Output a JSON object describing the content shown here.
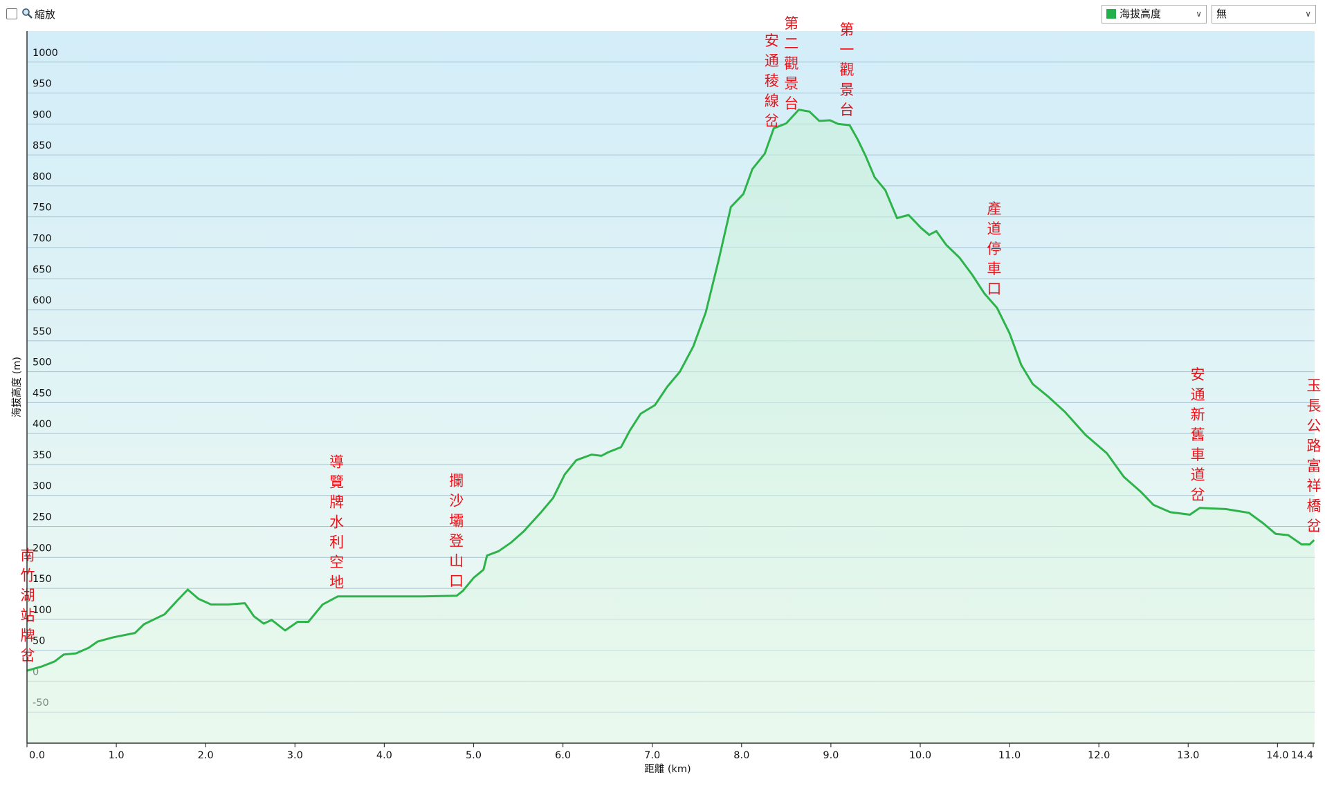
{
  "toolbar": {
    "zoom_label": "縮放",
    "series_select": "海拔高度",
    "compare_select": "無"
  },
  "chart_data": {
    "type": "area",
    "x_label": "距離 (km)",
    "y_label": "海拔高度 (m)",
    "xlim": [
      0,
      14.4
    ],
    "ylim": [
      -100,
      1050
    ],
    "xticks": [
      {
        "value": 0,
        "label": "0.0"
      },
      {
        "value": 1,
        "label": "1.0"
      },
      {
        "value": 2,
        "label": "2.0"
      },
      {
        "value": 3,
        "label": "3.0"
      },
      {
        "value": 4,
        "label": "4.0"
      },
      {
        "value": 5,
        "label": "5.0"
      },
      {
        "value": 6,
        "label": "6.0"
      },
      {
        "value": 7,
        "label": "7.0"
      },
      {
        "value": 8,
        "label": "8.0"
      },
      {
        "value": 9,
        "label": "9.0"
      },
      {
        "value": 10,
        "label": "10.0"
      },
      {
        "value": 11,
        "label": "11.0"
      },
      {
        "value": 12,
        "label": "12.0"
      },
      {
        "value": 13,
        "label": "13.0"
      },
      {
        "value": 14,
        "label": "14.0"
      },
      {
        "value": 14.4,
        "label": "14.4"
      }
    ],
    "yticks": [
      -50,
      0,
      50,
      100,
      150,
      200,
      250,
      300,
      350,
      400,
      450,
      500,
      550,
      600,
      650,
      700,
      750,
      800,
      850,
      900,
      950,
      1000
    ],
    "grid": true,
    "series": [
      {
        "name": "海拔高度",
        "color": "#2db34a",
        "x": [
          0,
          0.17,
          0.31,
          0.41,
          0.55,
          0.69,
          0.79,
          0.97,
          1.21,
          1.31,
          1.54,
          1.68,
          1.8,
          1.92,
          2.06,
          2.25,
          2.44,
          2.54,
          2.65,
          2.74,
          2.89,
          3.03,
          3.15,
          3.31,
          3.48,
          3.67,
          3.95,
          4.43,
          4.81,
          4.88,
          5,
          5.11,
          5.15,
          5.28,
          5.42,
          5.56,
          5.75,
          5.89,
          6.02,
          6.15,
          6.32,
          6.43,
          6.51,
          6.65,
          6.75,
          6.87,
          7.03,
          7.17,
          7.31,
          7.46,
          7.6,
          7.74,
          7.88,
          8.02,
          8.12,
          8.26,
          8.36,
          8.5,
          8.64,
          8.76,
          8.87,
          8.99,
          9.08,
          9.21,
          9.3,
          9.39,
          9.49,
          9.61,
          9.74,
          9.87,
          10.01,
          10.1,
          10.18,
          10.29,
          10.44,
          10.58,
          10.72,
          10.86,
          11,
          11.13,
          11.26,
          11.43,
          11.62,
          11.85,
          12.09,
          12.28,
          12.47,
          12.61,
          12.8,
          13.02,
          13.13,
          13.42,
          13.68,
          13.84,
          13.98,
          14.12,
          14.27,
          14.36,
          14.41
        ],
        "values": [
          17,
          24,
          32,
          43,
          45,
          54,
          64,
          71,
          78,
          92,
          108,
          130,
          148,
          133,
          124,
          124,
          126,
          105,
          93,
          99,
          82,
          96,
          96,
          124,
          137,
          137,
          137,
          137,
          138,
          146,
          167,
          180,
          203,
          210,
          224,
          242,
          272,
          296,
          334,
          357,
          366,
          364,
          370,
          378,
          405,
          432,
          446,
          476,
          500,
          541,
          596,
          678,
          766,
          787,
          827,
          852,
          893,
          901,
          923,
          920,
          905,
          906,
          900,
          898,
          875,
          848,
          814,
          793,
          748,
          753,
          732,
          721,
          727,
          705,
          684,
          657,
          626,
          603,
          562,
          511,
          480,
          460,
          435,
          398,
          368,
          330,
          306,
          285,
          273,
          269,
          280,
          278,
          272,
          255,
          238,
          236,
          221,
          221,
          228
        ]
      }
    ],
    "annotations": [
      {
        "text": "南竹湖站牌岔",
        "x": 0
      },
      {
        "text": "導覽牌水利空地",
        "x": 3.46
      },
      {
        "text": "攔沙壩登山口",
        "x": 4.8
      },
      {
        "text": "安通稜線岔",
        "x": 8.33
      },
      {
        "text": "第二觀景台",
        "x": 8.55
      },
      {
        "text": "第一觀景台",
        "x": 9.17
      },
      {
        "text": "產道停車口",
        "x": 10.82
      },
      {
        "text": "安通新舊車道岔",
        "x": 13.1
      },
      {
        "text": "玉長公路富祥橋岔",
        "x": 14.4
      }
    ]
  }
}
